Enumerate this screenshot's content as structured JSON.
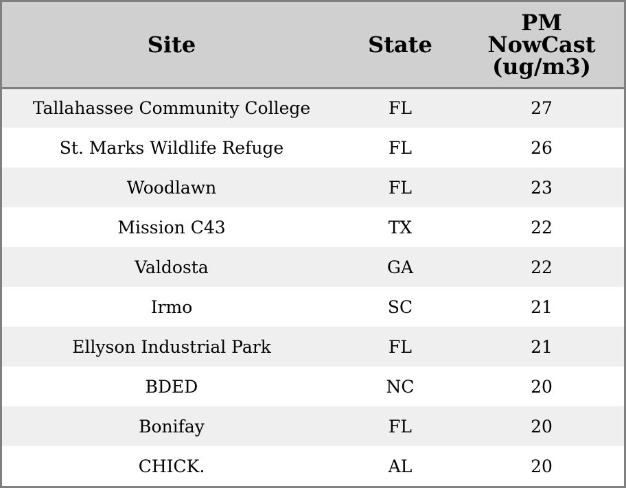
{
  "table": {
    "headers": {
      "site": "Site",
      "state": "State",
      "pm_line1": "PM",
      "pm_line2": "NowCast",
      "pm_line3": "(ug/m3)"
    },
    "rows": [
      {
        "site": "Tallahassee Community College",
        "state": "FL",
        "pm": "27"
      },
      {
        "site": "St. Marks Wildlife Refuge",
        "state": "FL",
        "pm": "26"
      },
      {
        "site": "Woodlawn",
        "state": "FL",
        "pm": "23"
      },
      {
        "site": "Mission C43",
        "state": "TX",
        "pm": "22"
      },
      {
        "site": "Valdosta",
        "state": "GA",
        "pm": "22"
      },
      {
        "site": "Irmo",
        "state": "SC",
        "pm": "21"
      },
      {
        "site": "Ellyson Industrial Park",
        "state": "FL",
        "pm": "21"
      },
      {
        "site": "BDED",
        "state": "NC",
        "pm": "20"
      },
      {
        "site": "Bonifay",
        "state": "FL",
        "pm": "20"
      },
      {
        "site": "CHICK.",
        "state": "AL",
        "pm": "20"
      }
    ]
  },
  "colors": {
    "header_bg": "#d0d0d0",
    "row_alt_bg": "#efefef",
    "row_bg": "#ffffff",
    "border": "#808080"
  }
}
